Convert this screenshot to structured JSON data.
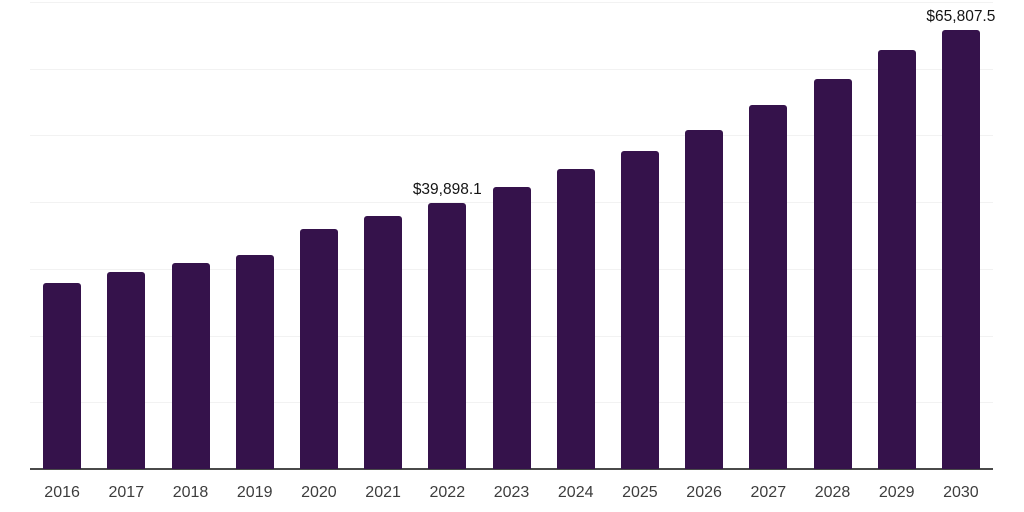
{
  "chart_data": {
    "type": "bar",
    "title": "",
    "xlabel": "",
    "ylabel": "",
    "categories": [
      "2016",
      "2017",
      "2018",
      "2019",
      "2020",
      "2021",
      "2022",
      "2023",
      "2024",
      "2025",
      "2026",
      "2027",
      "2028",
      "2029",
      "2030"
    ],
    "values": [
      27900,
      29500,
      30850,
      32100,
      36000,
      37900,
      39898.1,
      42300,
      45000,
      47700,
      50800,
      54500,
      58400,
      62800,
      65807.5
    ],
    "labeled_points": [
      {
        "category": "2022",
        "label": "$39,898.1"
      },
      {
        "category": "2030",
        "label": "$65,807.5"
      }
    ],
    "ylim": [
      0,
      70000
    ],
    "grid_step": 10000,
    "grid": "horizontal-only",
    "y_axis_labels_visible": false,
    "legend": "none",
    "bar_color": "#35124b",
    "gridline_color": "#f2f2f2",
    "axis_line_color": "#4a4a4a",
    "tick_label_color": "#3d3d3d",
    "value_label_color": "#141414"
  }
}
